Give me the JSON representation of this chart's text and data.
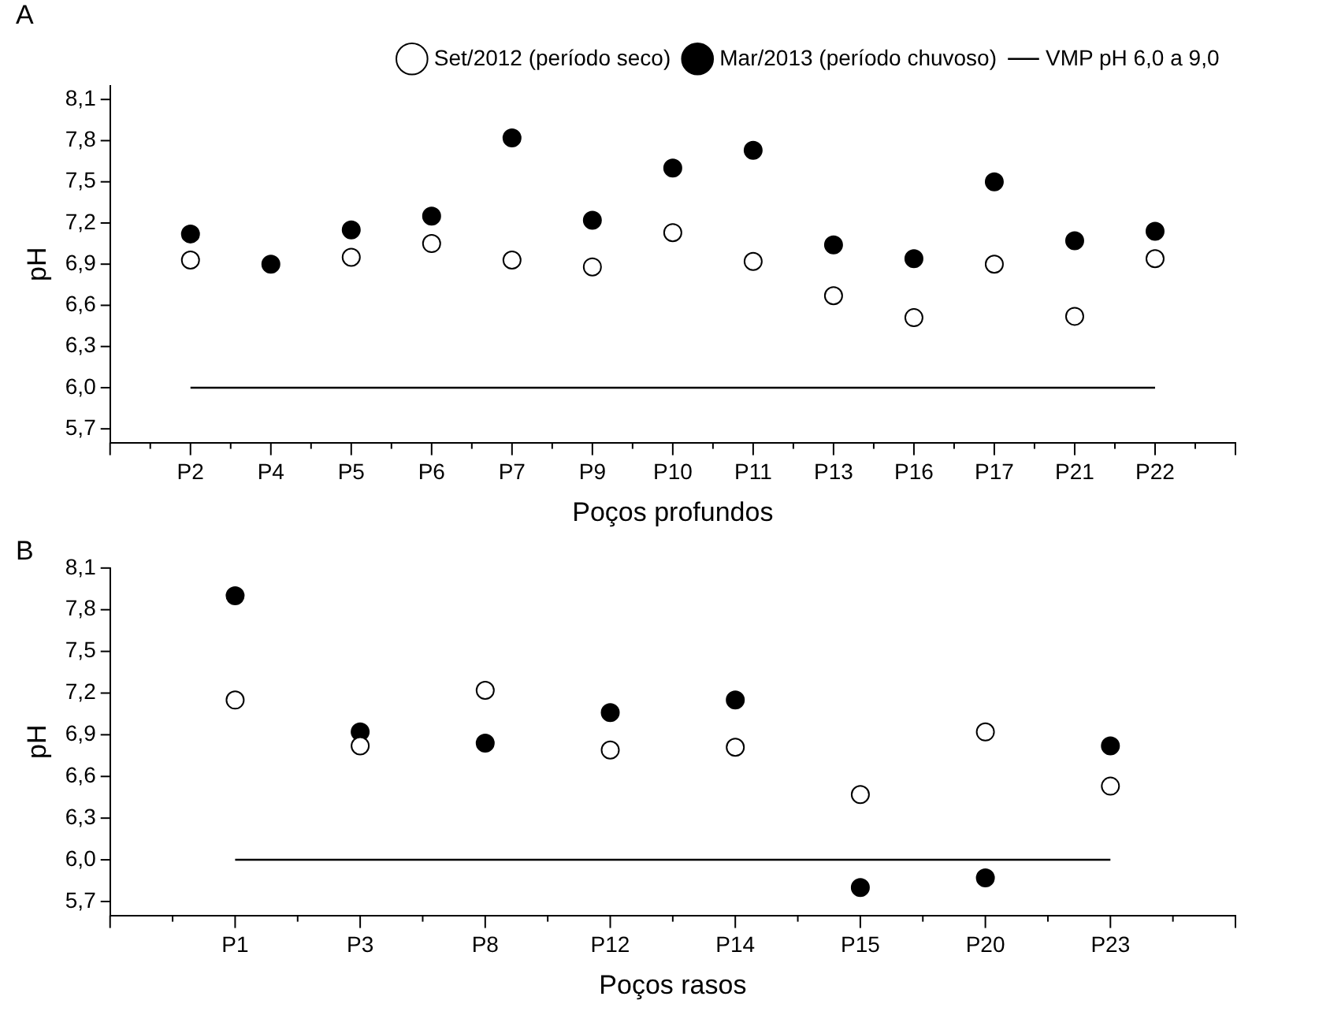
{
  "chart_data": [
    {
      "type": "scatter",
      "title": "A",
      "xlabel": "Poços profundos",
      "ylabel": "pH",
      "categories": [
        "P2",
        "P4",
        "P5",
        "P6",
        "P7",
        "P9",
        "P10",
        "P11",
        "P13",
        "P16",
        "P17",
        "P21",
        "P22"
      ],
      "series": [
        {
          "name": "Set/2012 (período seco)",
          "color": "#ffffff",
          "values": [
            6.93,
            null,
            6.95,
            7.05,
            6.93,
            6.88,
            7.13,
            6.92,
            6.67,
            6.51,
            6.9,
            6.52,
            6.94
          ]
        },
        {
          "name": "Mar/2013 (período chuvoso)",
          "color": "#000000",
          "values": [
            7.12,
            6.9,
            7.15,
            7.25,
            7.82,
            7.22,
            7.6,
            7.73,
            7.04,
            6.94,
            7.5,
            7.07,
            7.14
          ]
        }
      ],
      "ref_lines": [
        {
          "axis": "y",
          "value": 6.0,
          "label": "VMP pH 6,0 a 9,0",
          "color": "#000000",
          "line_style": "solid"
        }
      ],
      "ylim": [
        5.6,
        8.2
      ],
      "yticks": [
        {
          "value": 5.7,
          "label": "5,7"
        },
        {
          "value": 6.0,
          "label": "6,0"
        },
        {
          "value": 6.3,
          "label": "6,3"
        },
        {
          "value": 6.6,
          "label": "6,6"
        },
        {
          "value": 6.9,
          "label": "6,9"
        },
        {
          "value": 7.2,
          "label": "7,2"
        },
        {
          "value": 7.5,
          "label": "7,5"
        },
        {
          "value": 7.8,
          "label": "7,8"
        },
        {
          "value": 8.1,
          "label": "8,1"
        }
      ],
      "marker": "circle",
      "grid": false,
      "legend": "top right"
    },
    {
      "type": "scatter",
      "title": "B",
      "xlabel": "Poços rasos",
      "ylabel": "pH",
      "categories": [
        "P1",
        "P3",
        "P8",
        "P12",
        "P14",
        "P15",
        "P20",
        "P23"
      ],
      "series": [
        {
          "color": "#ffffff",
          "values": [
            7.15,
            6.82,
            7.22,
            6.79,
            6.81,
            6.47,
            6.92,
            6.53
          ]
        },
        {
          "color": "#000000",
          "values": [
            7.9,
            6.92,
            6.84,
            7.06,
            7.15,
            5.8,
            5.87,
            6.82
          ]
        }
      ],
      "ref_lines": [
        {
          "axis": "y",
          "value": 6.0,
          "color": "#000000",
          "line_style": "solid"
        }
      ],
      "ylim": [
        5.6,
        8.1
      ],
      "yticks": [
        {
          "value": 5.7,
          "label": "5,7"
        },
        {
          "value": 6.0,
          "label": "6,0"
        },
        {
          "value": 6.3,
          "label": "6,3"
        },
        {
          "value": 6.6,
          "label": "6,6"
        },
        {
          "value": 6.9,
          "label": "6,9"
        },
        {
          "value": 7.2,
          "label": "7,2"
        },
        {
          "value": 7.5,
          "label": "7,5"
        },
        {
          "value": 7.8,
          "label": "7,8"
        },
        {
          "value": 8.1,
          "label": "8,1"
        }
      ],
      "marker": "circle",
      "grid": false
    }
  ]
}
